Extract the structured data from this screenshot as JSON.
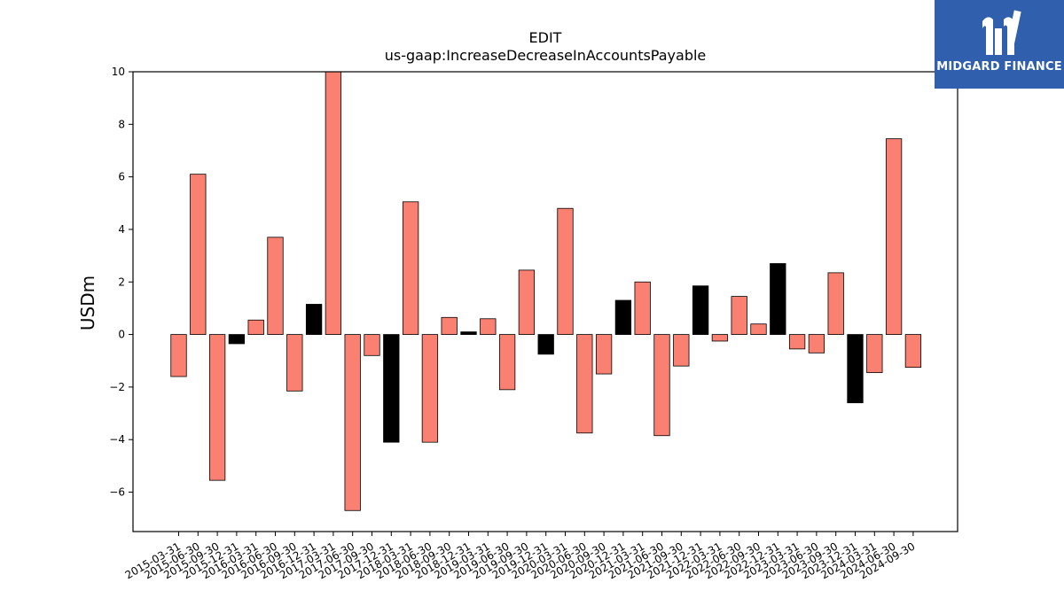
{
  "header": {
    "title": "EDIT",
    "subtitle": "us-gaap:IncreaseDecreaseInAccountsPayable"
  },
  "logo": {
    "brand_text": "MIDGARD FINANCE",
    "icon": "midgard-logo-icon",
    "background": "#2f5fad"
  },
  "colors": {
    "positive_bar": "#fa8072",
    "highlight_bar": "#000000",
    "axis": "#000000"
  },
  "chart_data": {
    "type": "bar",
    "title": "EDIT",
    "subtitle": "us-gaap:IncreaseDecreaseInAccountsPayable",
    "xlabel": "",
    "ylabel": "USDm",
    "ylim": [
      -7.5,
      10
    ],
    "yticks": [
      10,
      8,
      6,
      4,
      2,
      0,
      -2,
      -4,
      -6
    ],
    "ytick_labels": [
      "10",
      "8",
      "6",
      "4",
      "2",
      "0",
      "−2",
      "−4",
      "−6"
    ],
    "grid": false,
    "categories": [
      "2015-03-31",
      "2015-06-30",
      "2015-09-30",
      "2015-12-31",
      "2016-03-31",
      "2016-06-30",
      "2016-09-30",
      "2016-12-31",
      "2017-03-31",
      "2017-06-30",
      "2017-09-30",
      "2017-12-31",
      "2018-03-31",
      "2018-06-30",
      "2018-09-30",
      "2018-12-31",
      "2019-03-31",
      "2019-06-30",
      "2019-09-30",
      "2019-12-31",
      "2020-03-31",
      "2020-06-30",
      "2020-09-30",
      "2020-12-31",
      "2021-03-31",
      "2021-06-30",
      "2021-09-30",
      "2021-12-31",
      "2022-03-31",
      "2022-06-30",
      "2022-09-30",
      "2022-12-31",
      "2023-03-31",
      "2023-06-30",
      "2023-09-30",
      "2023-12-31",
      "2024-03-31",
      "2024-06-30",
      "2024-09-30"
    ],
    "values": [
      -1.6,
      6.1,
      -5.55,
      -0.35,
      0.55,
      3.7,
      -2.15,
      1.15,
      10.0,
      -6.7,
      -0.8,
      -4.1,
      5.05,
      -4.1,
      0.65,
      0.1,
      0.6,
      -2.1,
      2.45,
      -0.75,
      4.8,
      -3.75,
      -1.5,
      1.3,
      2.0,
      -3.85,
      -1.2,
      1.85,
      -0.25,
      1.45,
      0.4,
      2.7,
      -0.55,
      -0.7,
      2.35,
      -2.6,
      -1.45,
      7.45,
      -1.25
    ],
    "highlighted": [
      false,
      false,
      false,
      true,
      false,
      false,
      false,
      true,
      false,
      false,
      false,
      true,
      false,
      false,
      false,
      true,
      false,
      false,
      false,
      true,
      false,
      false,
      false,
      true,
      false,
      false,
      false,
      true,
      false,
      false,
      false,
      true,
      false,
      false,
      false,
      true,
      false,
      false,
      false
    ]
  }
}
